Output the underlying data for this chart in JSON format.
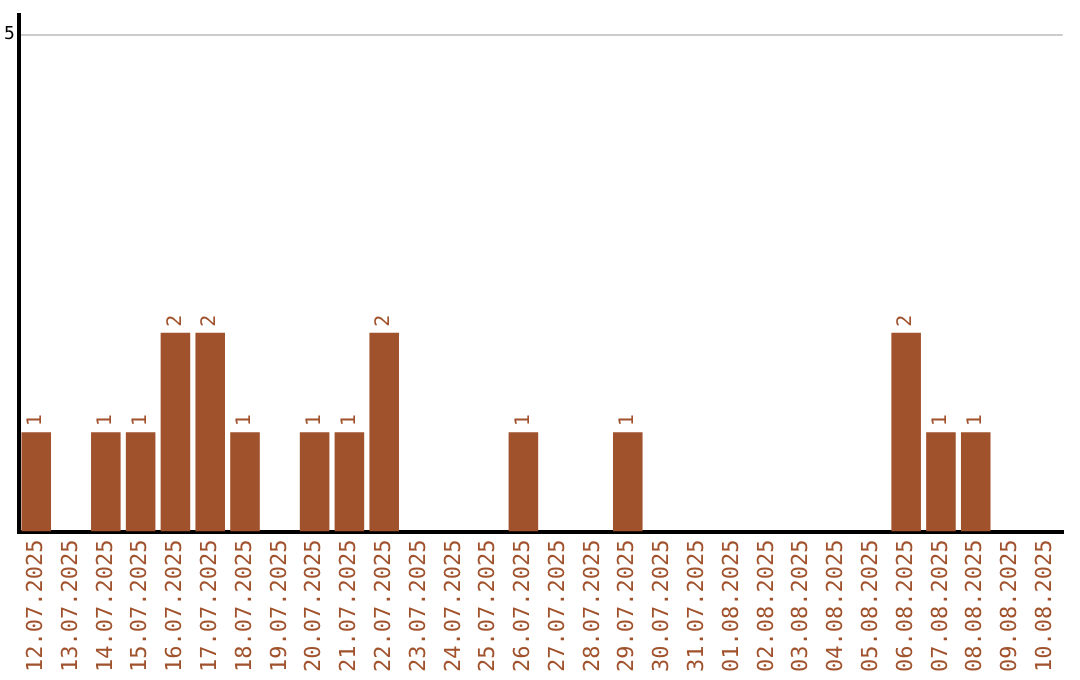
{
  "chart_data": {
    "type": "bar",
    "categories": [
      "12.07.2025",
      "13.07.2025",
      "14.07.2025",
      "15.07.2025",
      "16.07.2025",
      "17.07.2025",
      "18.07.2025",
      "19.07.2025",
      "20.07.2025",
      "21.07.2025",
      "22.07.2025",
      "23.07.2025",
      "24.07.2025",
      "25.07.2025",
      "26.07.2025",
      "27.07.2025",
      "28.07.2025",
      "29.07.2025",
      "30.07.2025",
      "31.07.2025",
      "01.08.2025",
      "02.08.2025",
      "03.08.2025",
      "04.08.2025",
      "05.08.2025",
      "06.08.2025",
      "07.08.2025",
      "08.08.2025",
      "09.08.2025",
      "10.08.2025"
    ],
    "values": [
      1,
      0,
      1,
      1,
      2,
      2,
      1,
      0,
      1,
      1,
      2,
      0,
      0,
      0,
      1,
      0,
      0,
      1,
      0,
      0,
      0,
      0,
      0,
      0,
      0,
      2,
      1,
      1,
      0,
      0
    ],
    "value_labels": [
      "1",
      null,
      "1",
      "1",
      "2",
      "2",
      "1",
      null,
      "1",
      "1",
      "2",
      null,
      null,
      null,
      "1",
      null,
      null,
      "1",
      null,
      null,
      null,
      null,
      null,
      null,
      null,
      "2",
      "1",
      "1",
      null,
      null
    ],
    "color": "#a0522d",
    "ylim": [
      0,
      5.2
    ],
    "yticks": [
      5
    ],
    "grid": "y",
    "legend": false
  }
}
